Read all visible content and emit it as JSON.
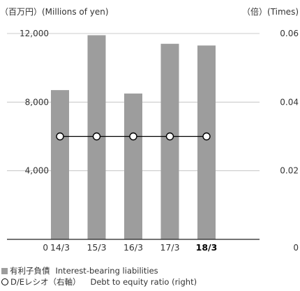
{
  "chart_data": {
    "type": "bar",
    "categories": [
      "14/3",
      "15/3",
      "16/3",
      "17/3",
      "18/3"
    ],
    "highlight_category": "18/3",
    "series": [
      {
        "name": "有利子負債　Interest-bearing liabilities",
        "legend_ja": "有利子負債",
        "legend_en": "Interest-bearing liabilities",
        "type": "bar",
        "axis": "left",
        "color": "#9d9d9d",
        "values": [
          8700,
          11900,
          8500,
          11400,
          11300
        ]
      },
      {
        "name": "D/Eレシオ（右軸）　Debt to equity ratio (right)",
        "legend_ja": "D/Eレシオ（右軸）",
        "legend_en": "Debt to equity ratio (right)",
        "type": "line",
        "axis": "right",
        "color": "#000000",
        "values": [
          0.03,
          0.03,
          0.03,
          0.03,
          0.03
        ]
      }
    ],
    "left_axis": {
      "label": "（百万円）(Millions of yen)",
      "ylim": [
        0,
        12000
      ],
      "ticks": [
        0,
        4000,
        8000,
        12000
      ],
      "tick_labels": [
        "0",
        "4,000",
        "8,000",
        "12,000"
      ]
    },
    "right_axis": {
      "label": "（倍）(Times)",
      "ylim": [
        0,
        0.06
      ],
      "ticks": [
        0,
        0.02,
        0.04,
        0.06
      ],
      "tick_labels": [
        "0",
        "0.02",
        "0.04",
        "0.06"
      ]
    },
    "grid": true,
    "legend_position": "bottom-left"
  }
}
